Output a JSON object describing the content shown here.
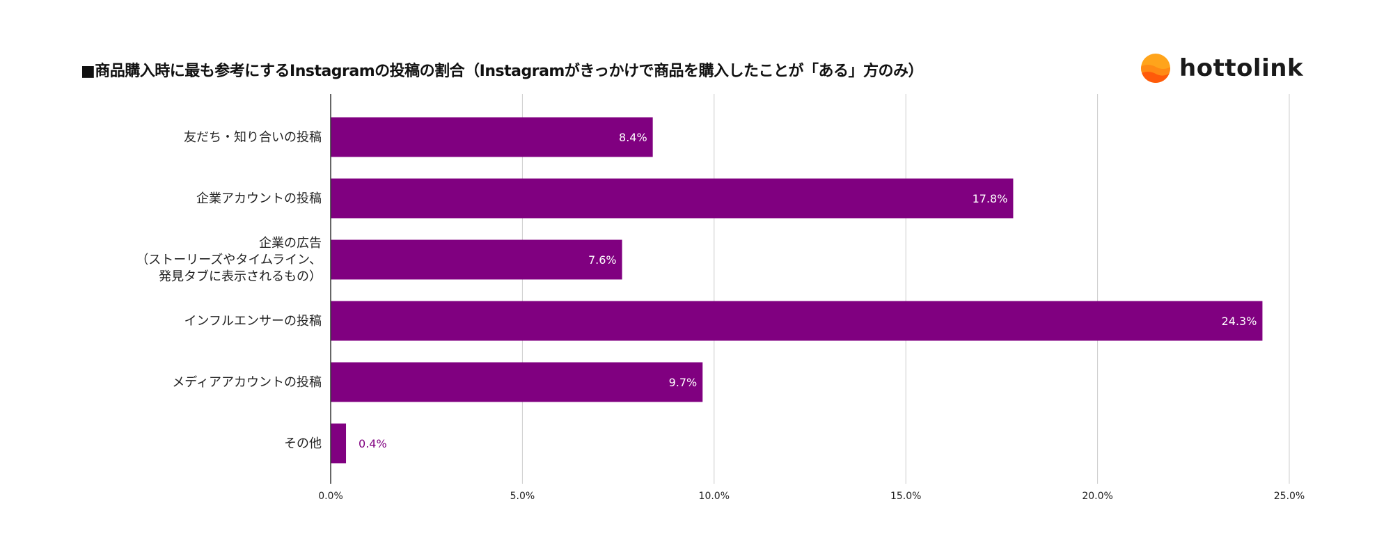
{
  "title": "■商品購入時に最も参考にするInstagramの投稿の割合（Instagramがきっかけで商品を購入したことが「ある」方のみ）",
  "logo": {
    "text": "hottolink"
  },
  "colors": {
    "bar": "#800080",
    "label_inside": "#ffffff",
    "label_outside": "#800080",
    "grid": "#cccccc"
  },
  "chart_data": {
    "type": "bar",
    "orientation": "horizontal",
    "title": "■商品購入時に最も参考にするInstagramの投稿の割合（Instagramがきっかけで商品を購入したことが「ある」方のみ）",
    "categories": [
      [
        "友だち・知り合いの投稿"
      ],
      [
        "企業アカウントの投稿"
      ],
      [
        "企業の広告",
        "（ストーリーズやタイムライン、",
        "発見タブに表示されるもの）"
      ],
      [
        "インフルエンサーの投稿"
      ],
      [
        "メディアアカウントの投稿"
      ],
      [
        "その他"
      ]
    ],
    "values": [
      8.4,
      17.8,
      7.6,
      24.3,
      9.7,
      0.4
    ],
    "data_labels": [
      "8.4%",
      "17.8%",
      "7.6%",
      "24.3%",
      "9.7%",
      "0.4%"
    ],
    "xlim": [
      0,
      25
    ],
    "xticks": [
      0,
      5,
      10,
      15,
      20,
      25
    ],
    "xtick_labels": [
      "0.0%",
      "5.0%",
      "10.0%",
      "15.0%",
      "20.0%",
      "25.0%"
    ],
    "xlabel": "",
    "ylabel": "",
    "grid": true,
    "legend": "none"
  }
}
